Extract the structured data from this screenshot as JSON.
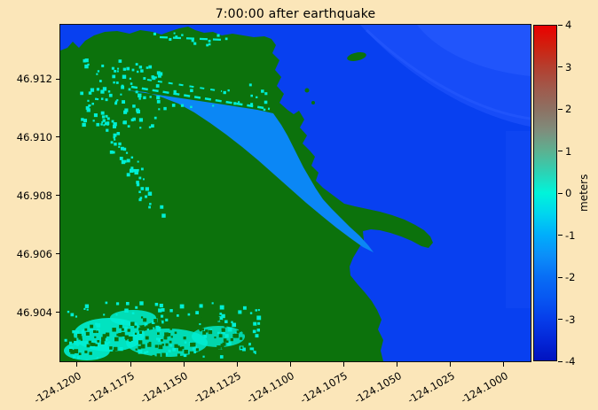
{
  "chart_data": {
    "type": "heatmap",
    "title": "7:00:00 after earthquake",
    "xlabel": "",
    "ylabel": "",
    "grid": false,
    "x_tick_rotation": 30,
    "xlim": [
      -124.12079,
      -124.09874
    ],
    "ylim": [
      46.90233,
      46.91385
    ],
    "x_ticks": [
      {
        "value": -124.12,
        "label": "-124.1200"
      },
      {
        "value": -124.1175,
        "label": "-124.1175"
      },
      {
        "value": -124.115,
        "label": "-124.1150"
      },
      {
        "value": -124.1125,
        "label": "-124.1125"
      },
      {
        "value": -124.11,
        "label": "-124.1100"
      },
      {
        "value": -124.1075,
        "label": "-124.1075"
      },
      {
        "value": -124.105,
        "label": "-124.1050"
      },
      {
        "value": -124.1025,
        "label": "-124.1025"
      },
      {
        "value": -124.1,
        "label": "-124.1000"
      }
    ],
    "y_ticks": [
      {
        "value": 46.912,
        "label": "46.912"
      },
      {
        "value": 46.91,
        "label": "46.910"
      },
      {
        "value": 46.908,
        "label": "46.908"
      },
      {
        "value": 46.906,
        "label": "46.906"
      },
      {
        "value": 46.904,
        "label": "46.904"
      }
    ],
    "colorbar": {
      "label": "meters",
      "vmin": -4,
      "vmax": 4,
      "ticks": [
        {
          "value": 4,
          "label": "4"
        },
        {
          "value": 3,
          "label": "3"
        },
        {
          "value": 2,
          "label": "2"
        },
        {
          "value": 1,
          "label": "1"
        },
        {
          "value": 0,
          "label": "0"
        },
        {
          "value": -1,
          "label": "-1"
        },
        {
          "value": -2,
          "label": "-2"
        },
        {
          "value": -3,
          "label": "-3"
        },
        {
          "value": -4,
          "label": "-4"
        }
      ],
      "stops": [
        "#ea0000",
        "#cf2110",
        "#b43f2f",
        "#a05a4c",
        "#8d7163",
        "#7f8d7c",
        "#5cb191",
        "#2dd2b4",
        "#00f4da",
        "#00d5ef",
        "#00aefb",
        "#0b8ef9",
        "#086ef5",
        "#0757f2",
        "#063eea",
        "#0427d8",
        "#0113bf"
      ]
    },
    "features": [
      {
        "name": "dry-land",
        "color_key": "land",
        "description": "dark green land mass with spit and hooked jetty"
      },
      {
        "name": "deep-water-ocean",
        "color_key": "ocean",
        "approx_value_m": -3,
        "description": "deep blue water, upper-left corner and right/lower-right ocean"
      },
      {
        "name": "harbor-basin",
        "color_key": "basin",
        "approx_value_m": -1.5,
        "description": "diagonal lighter-blue basin widening to the southeast"
      },
      {
        "name": "shallow-flooded-patches",
        "color_key": "cyan",
        "approx_value_m": 0,
        "description": "cyan speckled flooded areas: marina arc upper-left and low-lying area bottom-left"
      },
      {
        "name": "small-island",
        "color_key": "land",
        "description": "small green islet in upper-right water"
      }
    ]
  },
  "colors": {
    "bg": "#fbe6b9",
    "land": "#0c720c",
    "ocean": "#0840f0",
    "oceanlight": "#2a5cff",
    "basin": "#0b87f5",
    "cyan": "#00efd4",
    "frame": "#111111",
    "text": "#000000"
  }
}
